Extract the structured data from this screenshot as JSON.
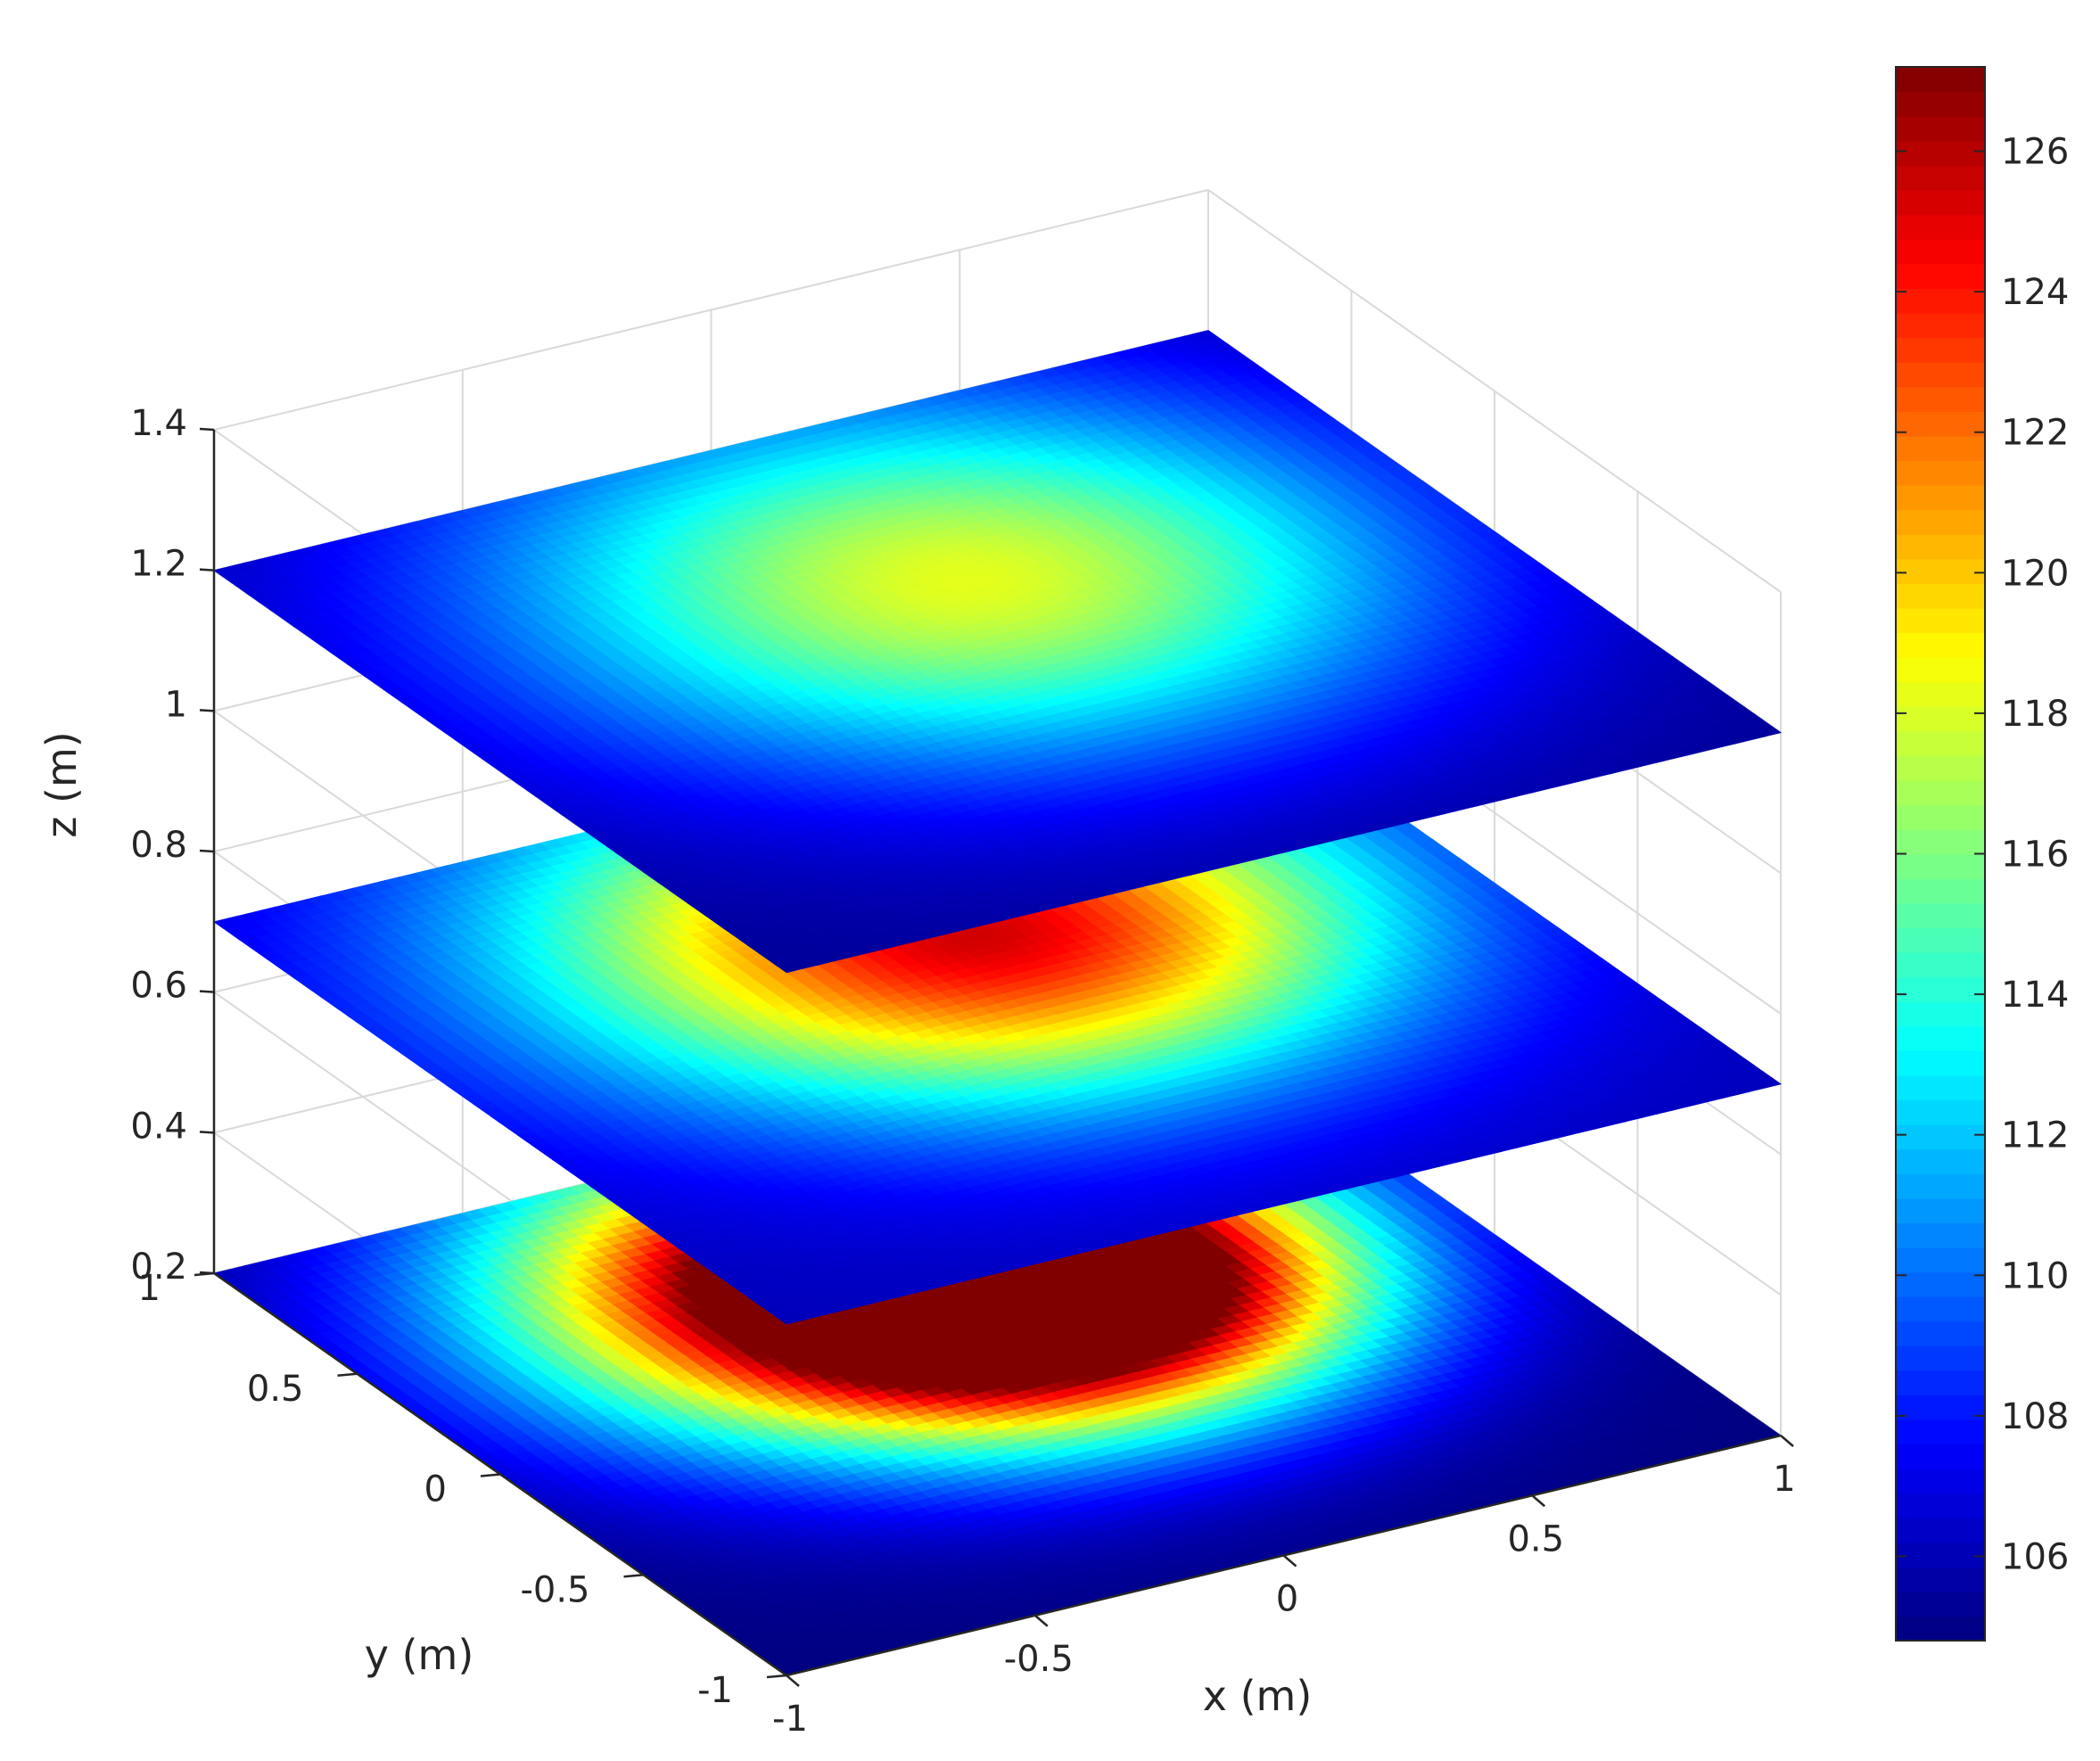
{
  "chart_data": {
    "type": "heatmap",
    "subtype": "3d-slice",
    "title": "",
    "xlabel": "x (m)",
    "ylabel": "y (m)",
    "zlabel": "z (m)",
    "xlim": [
      -1,
      1
    ],
    "ylim": [
      -1,
      1
    ],
    "zlim": [
      0.2,
      1.4
    ],
    "xticks": [
      -1,
      -0.5,
      0,
      0.5,
      1
    ],
    "yticks": [
      -1,
      -0.5,
      0,
      0.5,
      1
    ],
    "zticks": [
      0.2,
      0.4,
      0.6,
      0.8,
      1,
      1.2,
      1.4
    ],
    "xtick_labels": [
      "-1",
      "-0.5",
      "0",
      "0.5",
      "1"
    ],
    "ytick_labels": [
      "-1",
      "-0.5",
      "0",
      "0.5",
      "1"
    ],
    "ztick_labels": [
      "0.2",
      "0.4",
      "0.6",
      "0.8",
      "1",
      "1.2",
      "1.4"
    ],
    "grid": true,
    "colormap": "jet",
    "colorbar": {
      "range": [
        104.8,
        127.2
      ],
      "ticks": [
        106,
        108,
        110,
        112,
        114,
        116,
        118,
        120,
        122,
        124,
        126
      ],
      "tick_labels": [
        "106",
        "108",
        "110",
        "112",
        "114",
        "116",
        "118",
        "120",
        "122",
        "124",
        "126"
      ],
      "location": "right"
    },
    "slices": [
      {
        "z": 0.2,
        "base": 104.8,
        "sources": [
          {
            "x": -0.02,
            "y": 0.4,
            "amp": 22.4,
            "sigma": 0.48
          },
          {
            "x": 0.2,
            "y": 0.2,
            "amp": 20.6,
            "sigma": 0.36
          }
        ]
      },
      {
        "z": 0.7,
        "base": 106.0,
        "sources": [
          {
            "x": -0.02,
            "y": 0.4,
            "amp": 10.5,
            "sigma": 0.55
          },
          {
            "x": 0.2,
            "y": 0.2,
            "amp": 9.8,
            "sigma": 0.45
          }
        ]
      },
      {
        "z": 1.2,
        "base": 105.2,
        "sources": [
          {
            "x": -0.02,
            "y": 0.4,
            "amp": 7.3,
            "sigma": 0.6
          },
          {
            "x": 0.2,
            "y": 0.2,
            "amp": 6.2,
            "sigma": 0.5
          }
        ]
      }
    ]
  }
}
